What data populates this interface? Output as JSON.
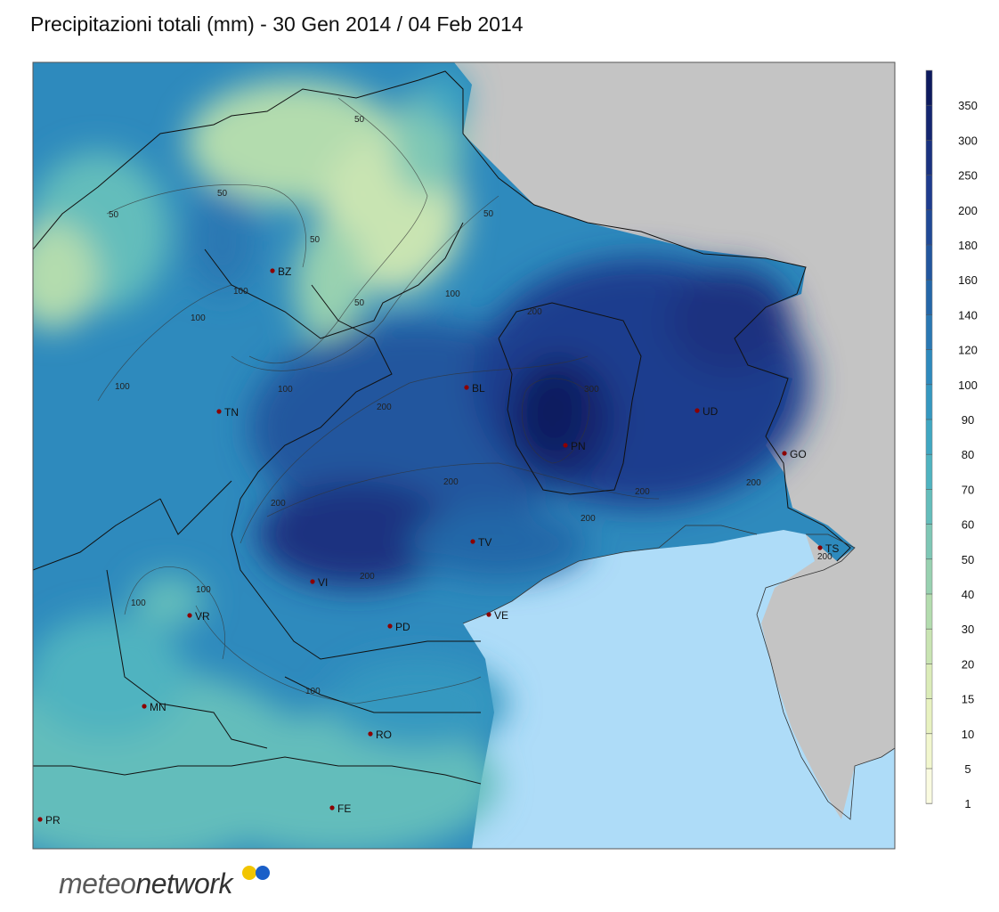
{
  "title": "Precipitazioni totali (mm) - 30 Gen 2014 / 04 Feb 2014",
  "colors": {
    "land_outside": "#c4c4c4",
    "sea": "#aedcf8",
    "border": "#111111",
    "city_dot": "#8b0000"
  },
  "colorbar": {
    "ticks": [
      "350",
      "300",
      "250",
      "200",
      "180",
      "160",
      "140",
      "120",
      "100",
      "90",
      "80",
      "70",
      "60",
      "50",
      "40",
      "30",
      "20",
      "15",
      "10",
      "5",
      "1"
    ],
    "colors": [
      "#0d1a5e",
      "#142670",
      "#1a3280",
      "#1e3c8e",
      "#204996",
      "#22569e",
      "#2467a8",
      "#2a78b3",
      "#2e8abd",
      "#3598c0",
      "#40a7c2",
      "#4fb3c0",
      "#64bdbb",
      "#7ec7b5",
      "#98d1b0",
      "#b3dcae",
      "#c9e4b2",
      "#dbecb8",
      "#e8f2c0",
      "#f2f7ce",
      "#fafbe0"
    ]
  },
  "contour_labels": [
    "50",
    "50",
    "50",
    "50",
    "50",
    "50",
    "100",
    "100",
    "100",
    "100",
    "100",
    "100",
    "100",
    "100",
    "200",
    "200",
    "200",
    "200",
    "200",
    "200",
    "200",
    "200",
    "200",
    "300"
  ],
  "cities": [
    {
      "code": "BZ"
    },
    {
      "code": "TN"
    },
    {
      "code": "BL"
    },
    {
      "code": "UD"
    },
    {
      "code": "PN"
    },
    {
      "code": "GO"
    },
    {
      "code": "TS"
    },
    {
      "code": "TV"
    },
    {
      "code": "VI"
    },
    {
      "code": "VR"
    },
    {
      "code": "PD"
    },
    {
      "code": "VE"
    },
    {
      "code": "MN"
    },
    {
      "code": "RO"
    },
    {
      "code": "FE"
    },
    {
      "code": "PR"
    }
  ],
  "logo": {
    "part1": "meteo",
    "part2": "network",
    "dot_colors": [
      "#f2c500",
      "#1a5fc8"
    ]
  }
}
